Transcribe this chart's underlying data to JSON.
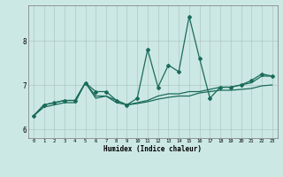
{
  "xlabel": "Humidex (Indice chaleur)",
  "background_color": "#cce8e4",
  "grid_color": "#b0c8c4",
  "line_color": "#1a6b5a",
  "x": [
    0,
    1,
    2,
    3,
    4,
    5,
    6,
    7,
    8,
    9,
    10,
    11,
    12,
    13,
    14,
    15,
    16,
    17,
    18,
    19,
    20,
    21,
    22,
    23
  ],
  "line1": [
    6.3,
    6.55,
    6.6,
    6.65,
    6.65,
    7.05,
    6.85,
    6.85,
    6.65,
    6.55,
    6.7,
    7.8,
    6.95,
    7.45,
    7.3,
    8.55,
    7.6,
    6.7,
    6.95,
    6.95,
    7.0,
    7.1,
    7.25,
    7.2
  ],
  "line2": [
    6.3,
    6.55,
    6.6,
    6.65,
    6.65,
    7.05,
    6.75,
    6.75,
    6.6,
    6.55,
    6.6,
    6.65,
    6.75,
    6.8,
    6.8,
    6.85,
    6.85,
    6.9,
    6.95,
    6.95,
    7.0,
    7.05,
    7.2,
    7.2
  ],
  "line3": [
    6.3,
    6.5,
    6.55,
    6.6,
    6.6,
    7.05,
    6.7,
    6.75,
    6.65,
    6.55,
    6.58,
    6.62,
    6.68,
    6.72,
    6.75,
    6.75,
    6.82,
    6.85,
    6.88,
    6.88,
    6.9,
    6.92,
    6.98,
    7.0
  ],
  "ylim": [
    5.8,
    8.8
  ],
  "yticks": [
    6,
    7,
    8
  ],
  "xlim": [
    -0.5,
    23.5
  ],
  "figwidth": 3.2,
  "figheight": 2.0,
  "dpi": 100
}
